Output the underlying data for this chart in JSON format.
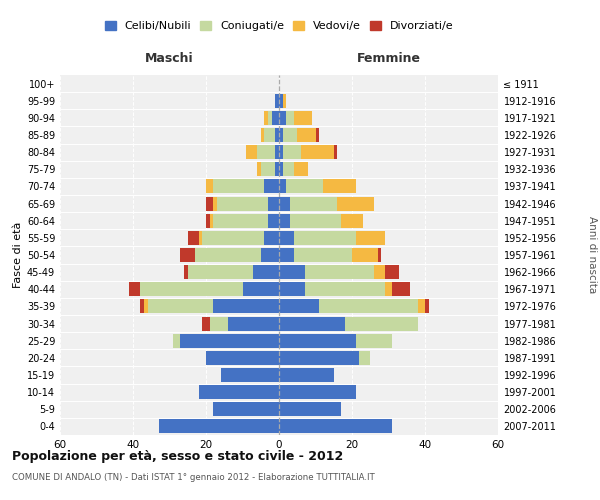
{
  "age_groups": [
    "0-4",
    "5-9",
    "10-14",
    "15-19",
    "20-24",
    "25-29",
    "30-34",
    "35-39",
    "40-44",
    "45-49",
    "50-54",
    "55-59",
    "60-64",
    "65-69",
    "70-74",
    "75-79",
    "80-84",
    "85-89",
    "90-94",
    "95-99",
    "100+"
  ],
  "birth_years": [
    "2007-2011",
    "2002-2006",
    "1997-2001",
    "1992-1996",
    "1987-1991",
    "1982-1986",
    "1977-1981",
    "1972-1976",
    "1967-1971",
    "1962-1966",
    "1957-1961",
    "1952-1956",
    "1947-1951",
    "1942-1946",
    "1937-1941",
    "1932-1936",
    "1927-1931",
    "1922-1926",
    "1917-1921",
    "1912-1916",
    "≤ 1911"
  ],
  "male": {
    "celibi": [
      33,
      18,
      22,
      16,
      20,
      27,
      14,
      18,
      10,
      7,
      5,
      4,
      3,
      3,
      4,
      1,
      1,
      1,
      2,
      1,
      0
    ],
    "coniugati": [
      0,
      0,
      0,
      0,
      0,
      2,
      5,
      18,
      28,
      18,
      18,
      17,
      15,
      14,
      14,
      4,
      5,
      3,
      1,
      0,
      0
    ],
    "vedovi": [
      0,
      0,
      0,
      0,
      0,
      0,
      0,
      1,
      0,
      0,
      0,
      1,
      1,
      1,
      2,
      1,
      3,
      1,
      1,
      0,
      0
    ],
    "divorziati": [
      0,
      0,
      0,
      0,
      0,
      0,
      2,
      1,
      3,
      1,
      4,
      3,
      1,
      2,
      0,
      0,
      0,
      0,
      0,
      0,
      0
    ]
  },
  "female": {
    "nubili": [
      31,
      17,
      21,
      15,
      22,
      21,
      18,
      11,
      7,
      7,
      4,
      4,
      3,
      3,
      2,
      1,
      1,
      1,
      2,
      1,
      0
    ],
    "coniugate": [
      0,
      0,
      0,
      0,
      3,
      10,
      20,
      27,
      22,
      19,
      16,
      17,
      14,
      13,
      10,
      3,
      5,
      4,
      2,
      0,
      0
    ],
    "vedove": [
      0,
      0,
      0,
      0,
      0,
      0,
      0,
      2,
      2,
      3,
      7,
      8,
      6,
      10,
      9,
      4,
      9,
      5,
      5,
      1,
      0
    ],
    "divorziate": [
      0,
      0,
      0,
      0,
      0,
      0,
      0,
      1,
      5,
      4,
      1,
      0,
      0,
      0,
      0,
      0,
      1,
      1,
      0,
      0,
      0
    ]
  },
  "colors": {
    "celibi": "#4472c4",
    "coniugati": "#c5d9a0",
    "vedovi": "#f5b942",
    "divorziati": "#c0392b"
  },
  "title": "Popolazione per età, sesso e stato civile - 2012",
  "subtitle": "COMUNE DI ANDALO (TN) - Dati ISTAT 1° gennaio 2012 - Elaborazione TUTTITALIA.IT",
  "ylabel": "Fasce di età",
  "xlabel_right": "Anni di nascita",
  "xlim": 60,
  "xticks": [
    -60,
    -40,
    -20,
    0,
    20,
    40,
    60
  ],
  "xtick_labels": [
    "60",
    "40",
    "20",
    "0",
    "20",
    "40",
    "60"
  ],
  "legend_labels": [
    "Celibi/Nubili",
    "Coniugati/e",
    "Vedovi/e",
    "Divorziati/e"
  ],
  "maschi_label": "Maschi",
  "femmine_label": "Femmine",
  "bg_color": "#f0f0f0"
}
